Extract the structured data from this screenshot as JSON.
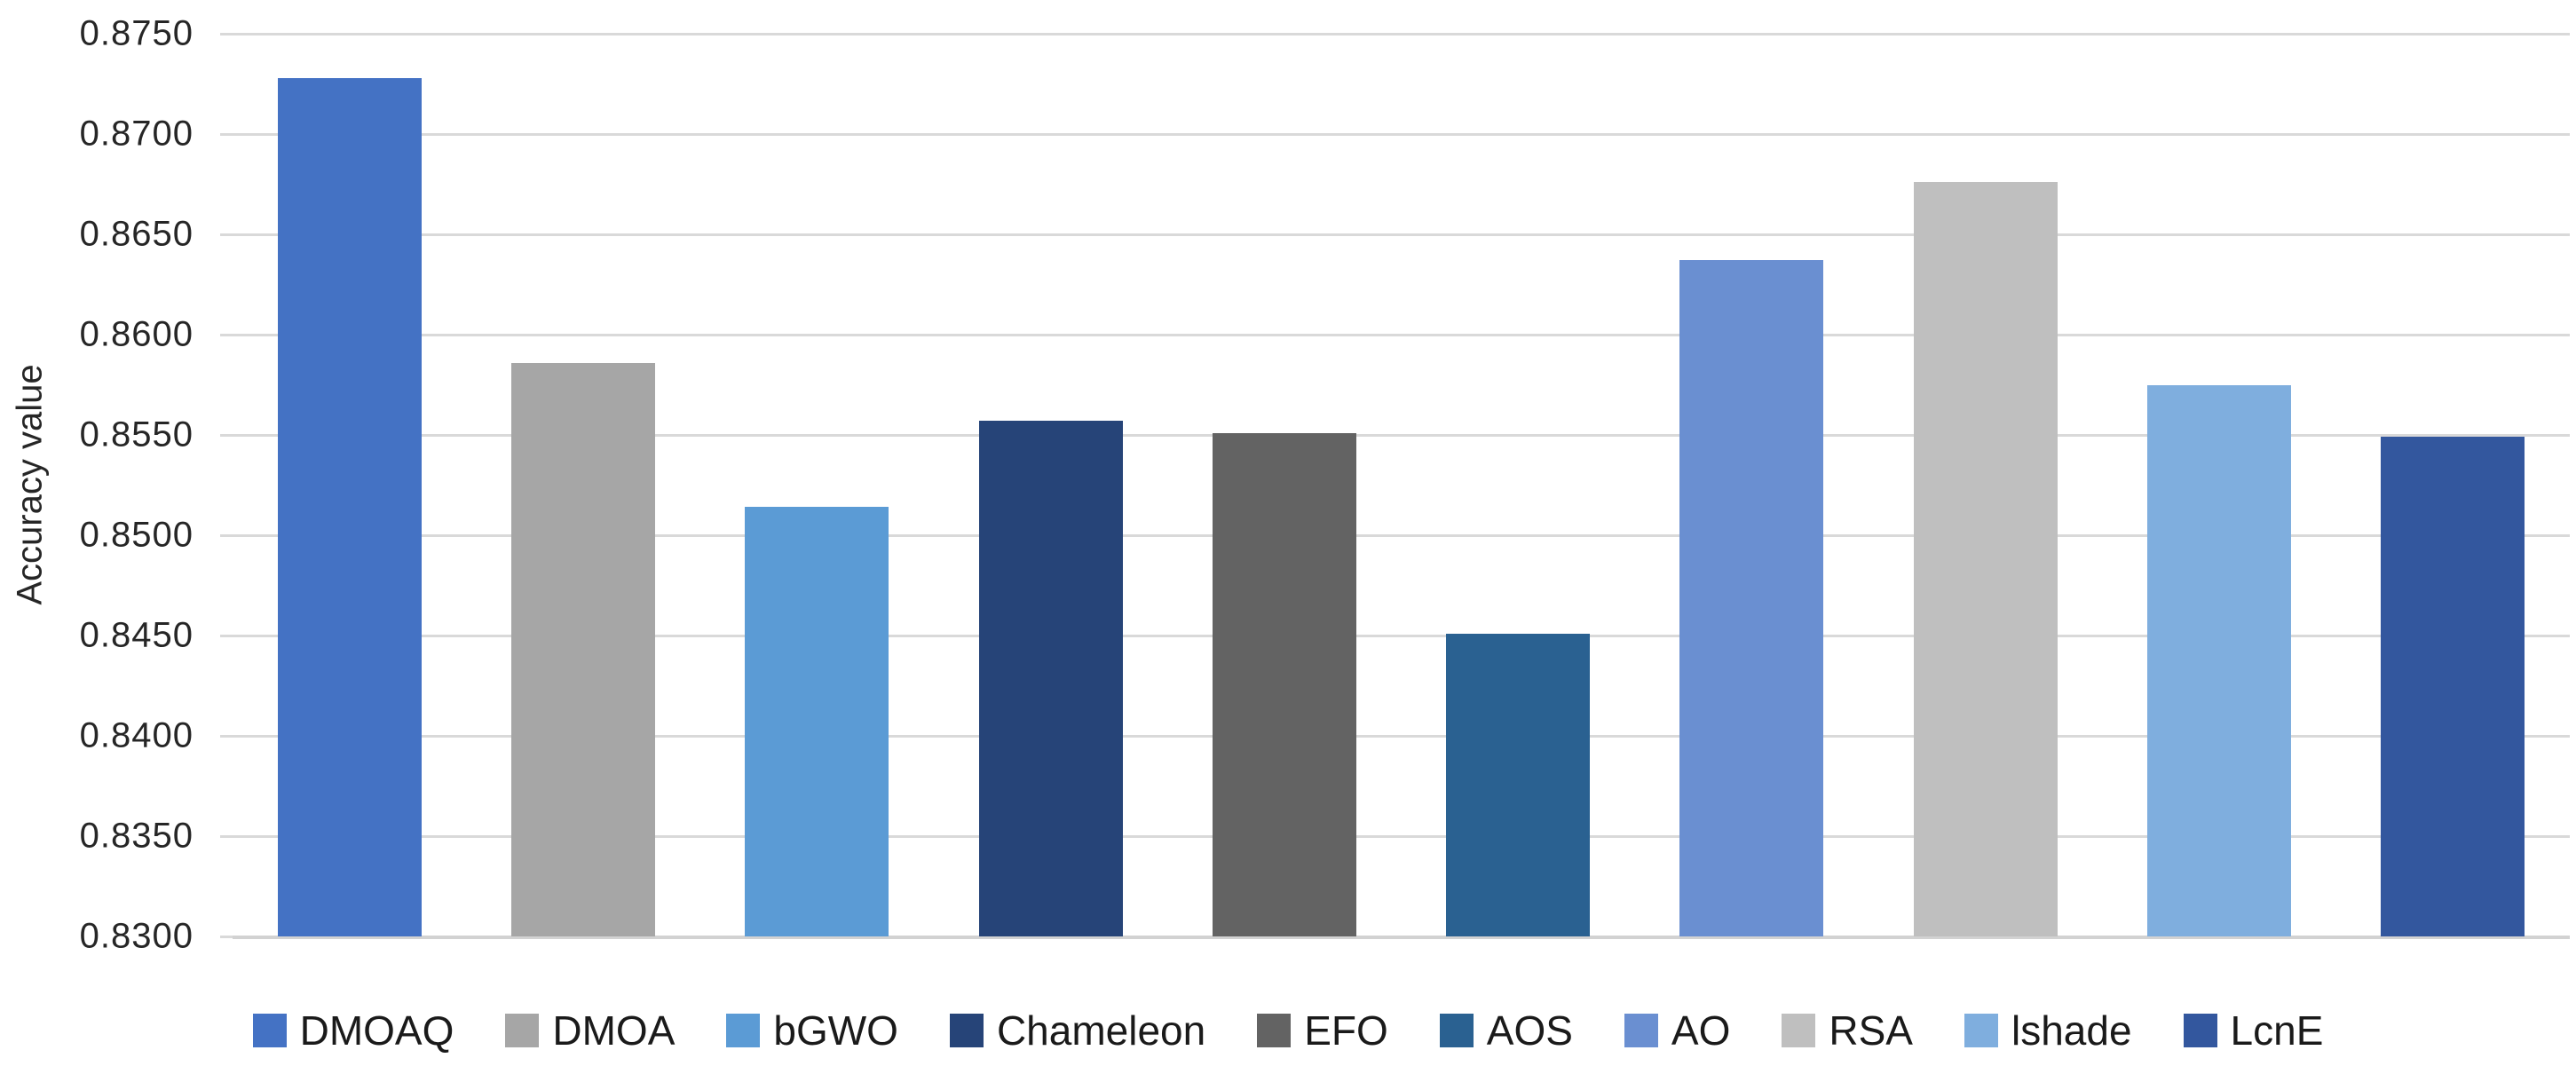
{
  "chart_data": {
    "type": "bar",
    "title": "",
    "xlabel": "",
    "ylabel": "Accuracy value",
    "ylim": [
      0.83,
      0.875
    ],
    "ytick_step": 0.005,
    "ytick_labels": [
      "0.8750",
      "0.8700",
      "0.8650",
      "0.8600",
      "0.8550",
      "0.8500",
      "0.8450",
      "0.8400",
      "0.8350",
      "0.8300"
    ],
    "grid": true,
    "legend_position": "bottom",
    "categories": [
      "DMOAQ",
      "DMOA",
      "bGWO",
      "Chameleon",
      "EFO",
      "AOS",
      "AO",
      "RSA",
      "lshade",
      "LcnE"
    ],
    "values": [
      0.8728,
      0.8586,
      0.8514,
      0.8557,
      0.8551,
      0.8451,
      0.8637,
      0.8676,
      0.8575,
      0.8549
    ],
    "colors": [
      "#4472C4",
      "#A6A6A6",
      "#5B9BD5",
      "#264478",
      "#636363",
      "#2A6191",
      "#6A8FD1",
      "#BFBFBF",
      "#7FAEDE",
      "#33579E"
    ],
    "gridline_color": "#D9D9D9",
    "tick_label_color": "#262626"
  }
}
